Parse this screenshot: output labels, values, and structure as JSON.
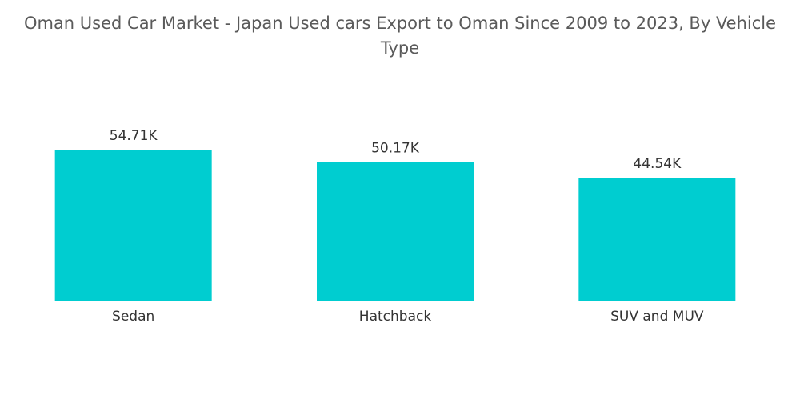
{
  "chart_data": {
    "type": "bar",
    "title": "Oman Used Car Market - Japan Used cars Export to Oman Since 2009 to 2023, By Vehicle Type",
    "categories": [
      "Sedan",
      "Hatchback",
      "SUV and MUV"
    ],
    "values": [
      54710,
      50170,
      44540
    ],
    "value_labels": [
      "54.71K",
      "50.17K",
      "44.54K"
    ],
    "color": "#00cdd0"
  }
}
